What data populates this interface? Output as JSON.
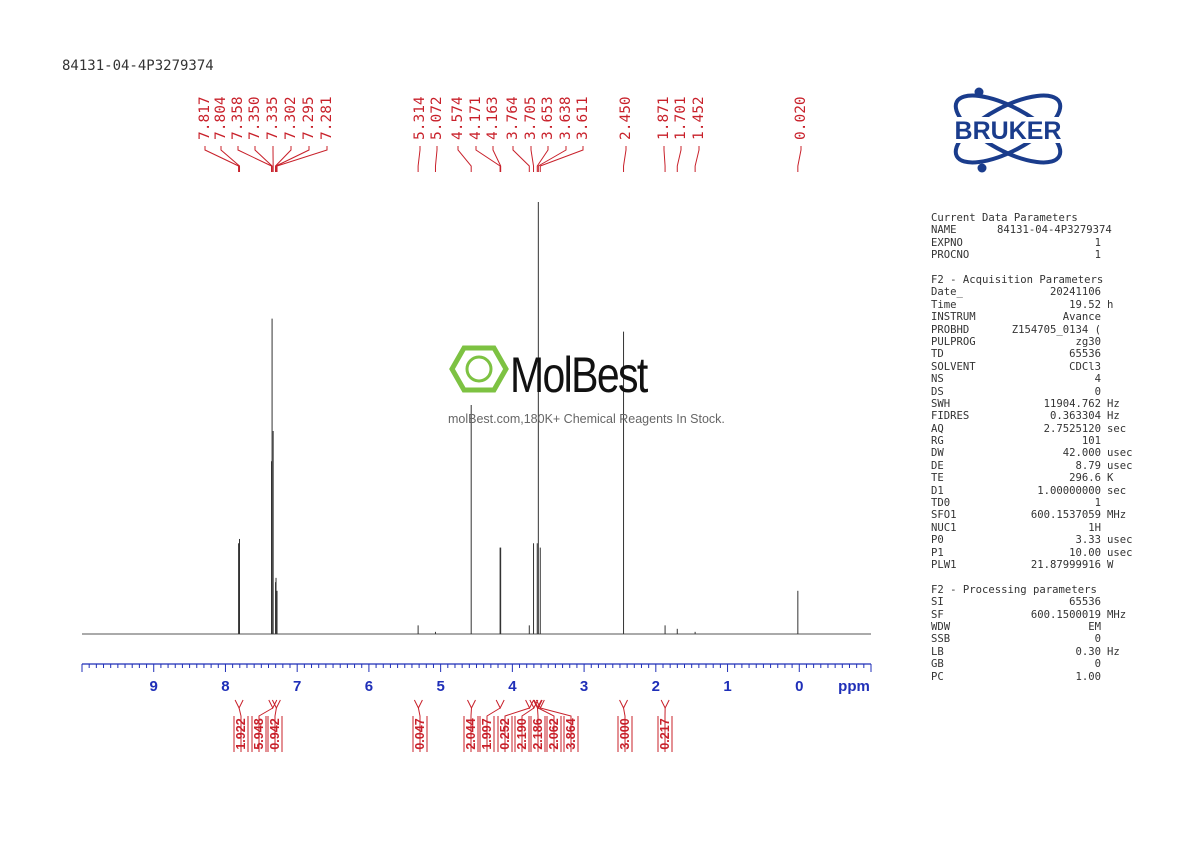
{
  "page": {
    "sample_id": "84131-04-4P3279374"
  },
  "logo": {
    "text": "BRUKER",
    "color": "#1a3c8c"
  },
  "watermark": {
    "brand": "MolBest",
    "tagline": "molBest.com,180K+ Chemical Reagents In Stock.",
    "color": "#7dc242"
  },
  "chart_data": {
    "type": "line",
    "title": "",
    "xlabel": "ppm",
    "xlim": [
      10,
      -1
    ],
    "x_ticks": [
      9,
      8,
      7,
      6,
      5,
      4,
      3,
      2,
      1,
      0
    ],
    "peak_labels": [
      "7.817",
      "7.804",
      "7.358",
      "7.350",
      "7.335",
      "7.302",
      "7.295",
      "7.281",
      "5.314",
      "5.072",
      "4.574",
      "4.171",
      "4.163",
      "3.764",
      "3.705",
      "3.653",
      "3.638",
      "3.611",
      "2.450",
      "1.871",
      "1.701",
      "1.452",
      "0.020"
    ],
    "peaks": [
      {
        "ppm": 7.817,
        "height": 0.21
      },
      {
        "ppm": 7.804,
        "height": 0.22
      },
      {
        "ppm": 7.358,
        "height": 0.4
      },
      {
        "ppm": 7.35,
        "height": 0.73
      },
      {
        "ppm": 7.335,
        "height": 0.47
      },
      {
        "ppm": 7.302,
        "height": 0.12
      },
      {
        "ppm": 7.295,
        "height": 0.13
      },
      {
        "ppm": 7.281,
        "height": 0.1
      },
      {
        "ppm": 5.314,
        "height": 0.02
      },
      {
        "ppm": 5.072,
        "height": 0.005
      },
      {
        "ppm": 4.574,
        "height": 0.53
      },
      {
        "ppm": 4.171,
        "height": 0.2
      },
      {
        "ppm": 4.163,
        "height": 0.2
      },
      {
        "ppm": 3.764,
        "height": 0.02
      },
      {
        "ppm": 3.705,
        "height": 0.21
      },
      {
        "ppm": 3.653,
        "height": 0.21
      },
      {
        "ppm": 3.638,
        "height": 1.0
      },
      {
        "ppm": 3.611,
        "height": 0.2
      },
      {
        "ppm": 2.45,
        "height": 0.7
      },
      {
        "ppm": 1.871,
        "height": 0.02
      },
      {
        "ppm": 1.701,
        "height": 0.012
      },
      {
        "ppm": 1.452,
        "height": 0.005
      },
      {
        "ppm": 0.02,
        "height": 0.1
      }
    ],
    "integrals": [
      {
        "ppm": 7.81,
        "value": "1.922"
      },
      {
        "ppm": 7.34,
        "value": "5.948"
      },
      {
        "ppm": 7.29,
        "value": "0.942"
      },
      {
        "ppm": 5.31,
        "value": "0.047"
      },
      {
        "ppm": 4.57,
        "value": "2.044"
      },
      {
        "ppm": 4.17,
        "value": "1.997"
      },
      {
        "ppm": 3.76,
        "value": "0.252"
      },
      {
        "ppm": 3.7,
        "value": "2.190"
      },
      {
        "ppm": 3.65,
        "value": "2.186"
      },
      {
        "ppm": 3.64,
        "value": "2.062"
      },
      {
        "ppm": 3.61,
        "value": "3.864"
      },
      {
        "ppm": 2.45,
        "value": "3.000"
      },
      {
        "ppm": 1.87,
        "value": "0.217"
      }
    ]
  },
  "parameters": [
    {
      "title": "Current Data Parameters",
      "rows": [
        {
          "k": "NAME",
          "v": "84131-04-4P3279374",
          "u": ""
        },
        {
          "k": "EXPNO",
          "v": "1",
          "u": ""
        },
        {
          "k": "PROCNO",
          "v": "1",
          "u": ""
        }
      ]
    },
    {
      "title": "F2 - Acquisition Parameters",
      "rows": [
        {
          "k": "Date_",
          "v": "20241106",
          "u": ""
        },
        {
          "k": "Time",
          "v": "19.52",
          "u": "h"
        },
        {
          "k": "INSTRUM",
          "v": "Avance",
          "u": ""
        },
        {
          "k": "PROBHD",
          "v": "Z154705_0134 (",
          "u": ""
        },
        {
          "k": "PULPROG",
          "v": "zg30",
          "u": ""
        },
        {
          "k": "TD",
          "v": "65536",
          "u": ""
        },
        {
          "k": "SOLVENT",
          "v": "CDCl3",
          "u": ""
        },
        {
          "k": "NS",
          "v": "4",
          "u": ""
        },
        {
          "k": "DS",
          "v": "0",
          "u": ""
        },
        {
          "k": "SWH",
          "v": "11904.762",
          "u": "Hz"
        },
        {
          "k": "FIDRES",
          "v": "0.363304",
          "u": "Hz"
        },
        {
          "k": "AQ",
          "v": "2.7525120",
          "u": "sec"
        },
        {
          "k": "RG",
          "v": "101",
          "u": ""
        },
        {
          "k": "DW",
          "v": "42.000",
          "u": "usec"
        },
        {
          "k": "DE",
          "v": "8.79",
          "u": "usec"
        },
        {
          "k": "TE",
          "v": "296.6",
          "u": "K"
        },
        {
          "k": "D1",
          "v": "1.00000000",
          "u": "sec"
        },
        {
          "k": "TD0",
          "v": "1",
          "u": ""
        },
        {
          "k": "SFO1",
          "v": "600.1537059",
          "u": "MHz"
        },
        {
          "k": "NUC1",
          "v": "1H",
          "u": ""
        },
        {
          "k": "P0",
          "v": "3.33",
          "u": "usec"
        },
        {
          "k": "P1",
          "v": "10.00",
          "u": "usec"
        },
        {
          "k": "PLW1",
          "v": "21.87999916",
          "u": "W"
        }
      ]
    },
    {
      "title": "F2 - Processing parameters",
      "rows": [
        {
          "k": "SI",
          "v": "65536",
          "u": ""
        },
        {
          "k": "SF",
          "v": "600.1500019",
          "u": "MHz"
        },
        {
          "k": "WDW",
          "v": "EM",
          "u": ""
        },
        {
          "k": "SSB",
          "v": "0",
          "u": ""
        },
        {
          "k": "LB",
          "v": "0.30",
          "u": "Hz"
        },
        {
          "k": "GB",
          "v": "0",
          "u": ""
        },
        {
          "k": "PC",
          "v": "1.00",
          "u": ""
        }
      ]
    }
  ]
}
